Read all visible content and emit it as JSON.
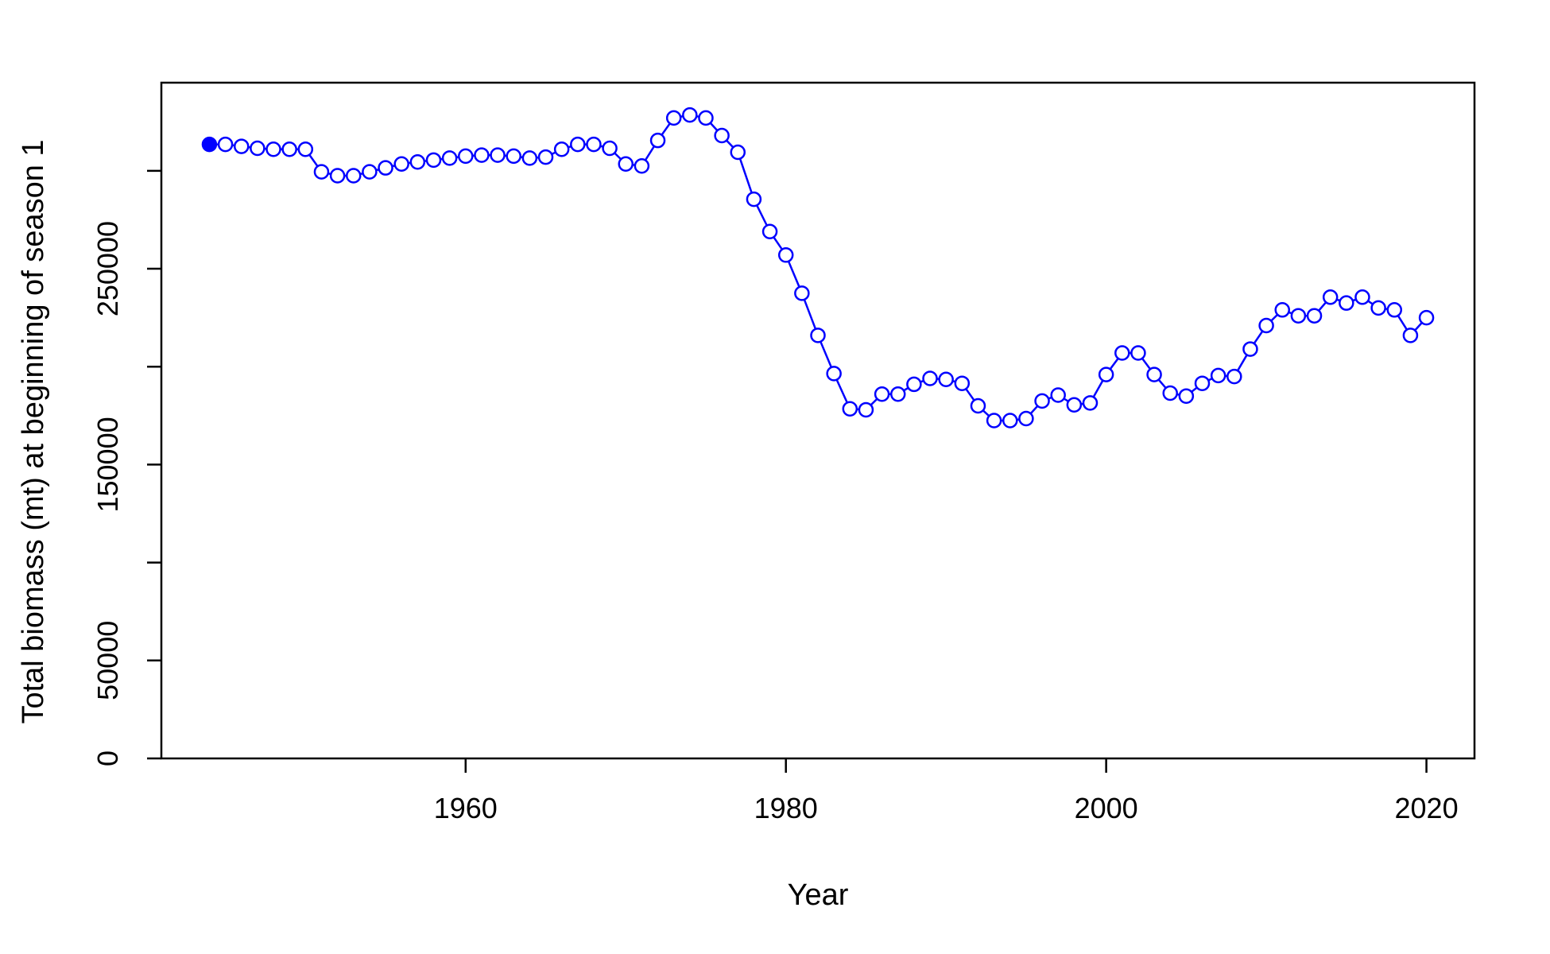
{
  "chart_data": {
    "type": "line",
    "xlabel": "Year",
    "ylabel": "Total biomass (mt) at beginning of season 1",
    "xlim": [
      1941,
      2023
    ],
    "ylim": [
      0,
      345000
    ],
    "x_ticks": [
      1960,
      1980,
      2000,
      2020
    ],
    "x_tick_labels": [
      "1960",
      "1980",
      "2000",
      "2020"
    ],
    "y_ticks": [
      0,
      50000,
      100000,
      150000,
      200000,
      250000,
      300000
    ],
    "y_tick_labels": [
      "0",
      "50000",
      "",
      "150000",
      "",
      "250000",
      ""
    ],
    "series_color": "#0000ff",
    "first_point_filled": true,
    "series": [
      {
        "x": [
          1944,
          1945,
          1946,
          1947,
          1948,
          1949,
          1950,
          1951,
          1952,
          1953,
          1954,
          1955,
          1956,
          1957,
          1958,
          1959,
          1960,
          1961,
          1962,
          1963,
          1964,
          1965,
          1966,
          1967,
          1968,
          1969,
          1970,
          1971,
          1972,
          1973,
          1974,
          1975,
          1976,
          1977,
          1978,
          1979,
          1980,
          1981,
          1982,
          1983,
          1984,
          1985,
          1986,
          1987,
          1988,
          1989,
          1990,
          1991,
          1992,
          1993,
          1994,
          1995,
          1996,
          1997,
          1998,
          1999,
          2000,
          2001,
          2002,
          2003,
          2004,
          2005,
          2006,
          2007,
          2008,
          2009,
          2010,
          2011,
          2012,
          2013,
          2014,
          2015,
          2016,
          2017,
          2018,
          2019,
          2020
        ],
        "values": [
          313500,
          313500,
          312500,
          311500,
          311000,
          311000,
          311000,
          299500,
          297500,
          297500,
          299500,
          301500,
          303500,
          304500,
          305500,
          306500,
          307500,
          308000,
          308000,
          307500,
          306500,
          307000,
          311000,
          313500,
          313500,
          311500,
          303500,
          302500,
          315500,
          327000,
          328500,
          327000,
          318000,
          309500,
          285500,
          269000,
          257000,
          237500,
          216000,
          196500,
          178500,
          178000,
          186000,
          186000,
          191000,
          194000,
          193500,
          191500,
          180000,
          172500,
          172500,
          173500,
          182500,
          185500,
          180500,
          181500,
          196000,
          207000,
          207000,
          196000,
          186500,
          185000,
          191500,
          195500,
          195000,
          209000,
          221000,
          229000,
          226000,
          226000,
          235500,
          232500,
          235500,
          230000,
          229000,
          216000,
          225000
        ]
      }
    ]
  }
}
